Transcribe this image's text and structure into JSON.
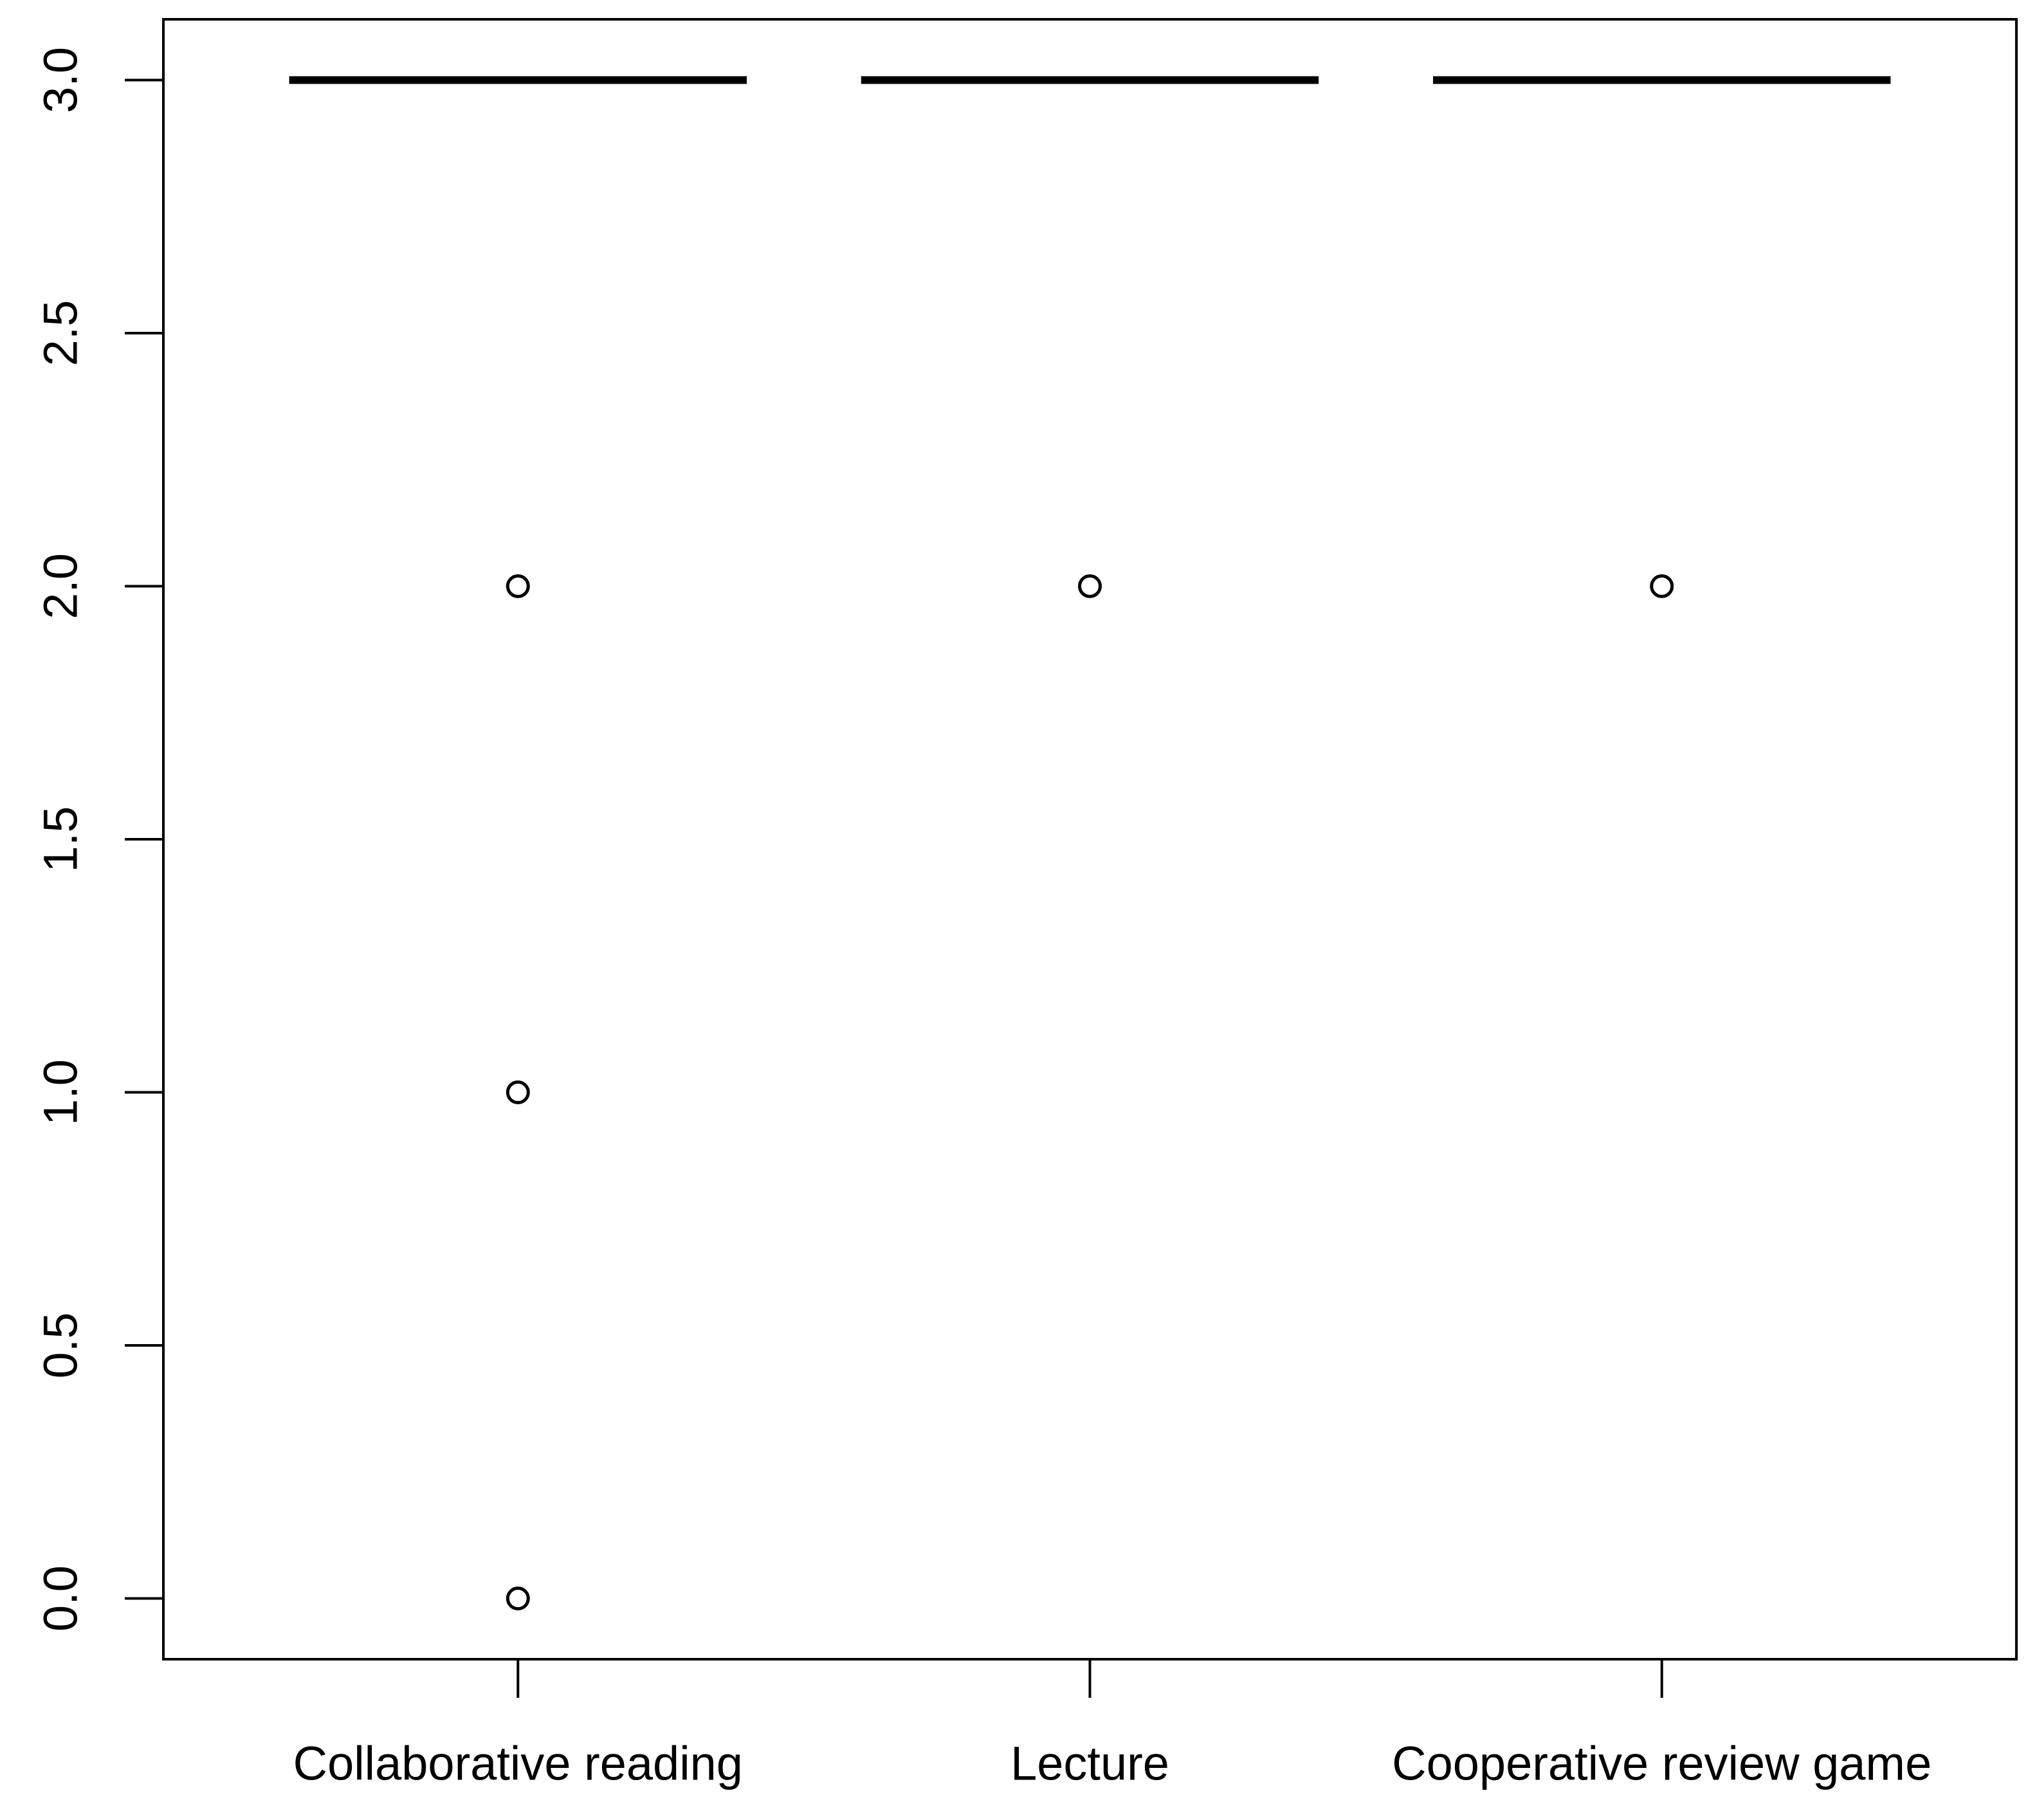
{
  "chart_data": {
    "type": "box",
    "categories": [
      "Collaborative reading",
      "Lecture",
      "Cooperative review game"
    ],
    "boxes": [
      {
        "median": 3,
        "q1": 3,
        "q3": 3,
        "whisker_low": 3,
        "whisker_high": 3,
        "outliers": [
          2,
          1,
          0
        ]
      },
      {
        "median": 3,
        "q1": 3,
        "q3": 3,
        "whisker_low": 3,
        "whisker_high": 3,
        "outliers": [
          2
        ]
      },
      {
        "median": 3,
        "q1": 3,
        "q3": 3,
        "whisker_low": 3,
        "whisker_high": 3,
        "outliers": [
          2
        ]
      }
    ],
    "color": "#000000",
    "ylim": [
      -0.12,
      3.12
    ],
    "yticks": [
      {
        "value": 0,
        "label": "0.0"
      },
      0.5,
      {
        "value": 1,
        "label": "1.0"
      },
      1.5,
      {
        "value": 2,
        "label": "2.0"
      },
      2.5,
      {
        "value": 3,
        "label": "3.0"
      }
    ]
  }
}
